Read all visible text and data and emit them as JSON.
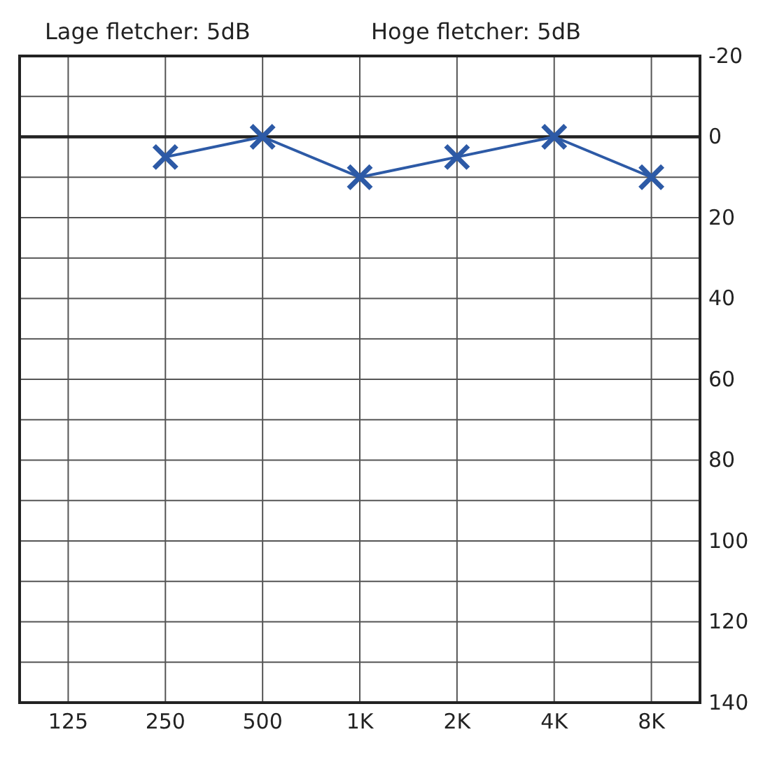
{
  "chart_data": {
    "type": "line",
    "annotations": [
      "Lage fletcher: 5dB",
      "Hoge fletcher: 5dB"
    ],
    "categories": [
      "125",
      "250",
      "500",
      "1K",
      "2K",
      "4K",
      "8K"
    ],
    "series": [
      {
        "color": "#2d5aa6",
        "values": [
          null,
          5,
          0,
          10,
          5,
          0,
          10
        ]
      }
    ],
    "ylim": [
      140,
      -20
    ],
    "yticks": [
      -20,
      {
        "value": -10,
        "label": null
      },
      0,
      {
        "value": 10,
        "label": null
      },
      20,
      {
        "value": 30,
        "label": null
      },
      40,
      {
        "value": 50,
        "label": null
      },
      60,
      {
        "value": 70,
        "label": null
      },
      80,
      {
        "value": 90,
        "label": null
      },
      100,
      {
        "value": 110,
        "label": null
      },
      120,
      {
        "value": 130,
        "label": null
      },
      140
    ],
    "ref_lines": [
      {
        "axis": "y",
        "value": 0,
        "color": "#222222"
      }
    ],
    "grid": true,
    "marker": "cross",
    "line_style": "solid"
  }
}
